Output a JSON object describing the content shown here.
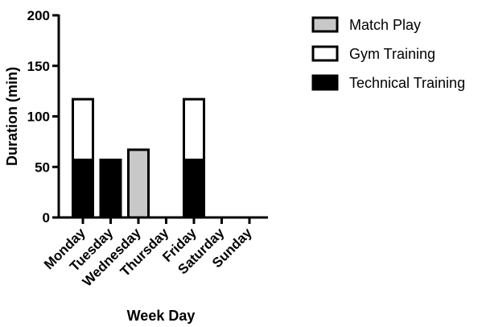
{
  "chart_data": {
    "type": "bar",
    "stacked": true,
    "categories": [
      "Monday",
      "Tuesday",
      "Wednesday",
      "Thursday",
      "Friday",
      "Saturday",
      "Sunday"
    ],
    "series": [
      {
        "name": "Technical Training",
        "color": "#000000",
        "values": [
          57,
          57,
          0,
          0,
          57,
          0,
          0
        ]
      },
      {
        "name": "Gym Training",
        "color": "#ffffff",
        "values": [
          60,
          0,
          0,
          0,
          60,
          0,
          0
        ]
      },
      {
        "name": "Match Play",
        "color": "#c8c8c8",
        "values": [
          0,
          0,
          67,
          0,
          0,
          0,
          0
        ]
      }
    ],
    "legend_order": [
      "Match Play",
      "Gym Training",
      "Technical Training"
    ],
    "xlabel": "Week Day",
    "ylabel": "Duration (min)",
    "ylim": [
      0,
      200
    ],
    "yticks": [
      "0",
      "50",
      "100",
      "150",
      "200"
    ],
    "grid": false,
    "legend_position": "top-right"
  }
}
